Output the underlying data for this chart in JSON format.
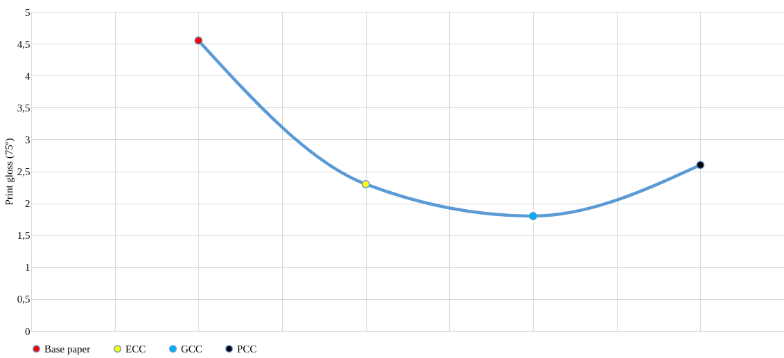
{
  "chart_data": {
    "type": "line",
    "ylabel": "Print gloss (75º)",
    "categories": [
      null,
      null,
      null,
      null
    ],
    "ylim": [
      0,
      5
    ],
    "yticks": [
      0,
      {
        "value": 0.5,
        "label": "0,5"
      },
      1,
      {
        "value": 1.5,
        "label": "1,5"
      },
      2,
      {
        "value": 2.5,
        "label": "2,5"
      },
      3,
      {
        "value": 3.5,
        "label": "3,5"
      },
      4,
      {
        "value": 4.5,
        "label": "4,5"
      },
      5
    ],
    "tick_labels": "y",
    "grid": true,
    "legend": "bottom",
    "series": [
      {
        "color": "#5b9bd5",
        "line_style": "solid",
        "values": [
          4.55,
          2.3,
          1.8,
          2.6
        ]
      },
      {
        "type": "scatter",
        "marker": "circle",
        "name": "Base paper",
        "color": "#ff0000",
        "values": [
          4.55,
          null,
          null,
          null
        ]
      },
      {
        "type": "scatter",
        "marker": "circle",
        "name": "ECC",
        "color": "#ffff00",
        "values": [
          null,
          2.3,
          null,
          null
        ]
      },
      {
        "type": "scatter",
        "marker": "circle",
        "name": "GCC",
        "color": "#00b0f0",
        "values": [
          null,
          null,
          1.8,
          null
        ]
      },
      {
        "type": "scatter",
        "marker": "circle",
        "name": "PCC",
        "color": "#000000",
        "values": [
          null,
          null,
          null,
          2.6
        ]
      }
    ]
  }
}
